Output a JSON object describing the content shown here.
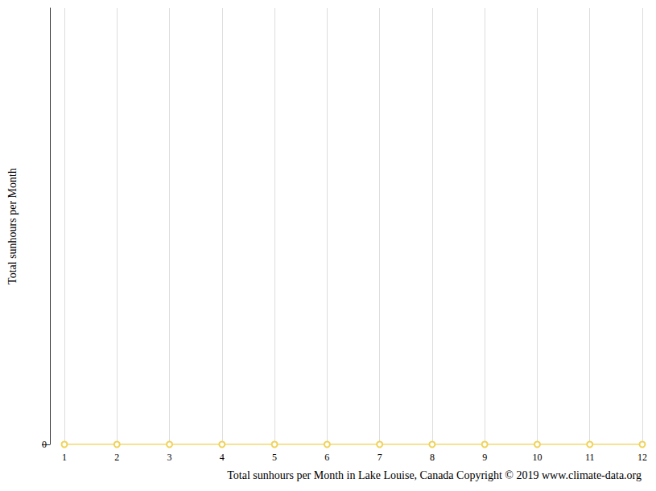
{
  "chart_data": {
    "type": "line",
    "xlabel": "Total sunhours per Month in Lake Louise, Canada Copyright © 2019 www.climate-data.org",
    "ylabel": "Total sunhours per Month",
    "categories": [
      "1",
      "2",
      "3",
      "4",
      "5",
      "6",
      "7",
      "8",
      "9",
      "10",
      "11",
      "12"
    ],
    "values": [
      0,
      0,
      0,
      0,
      0,
      0,
      0,
      0,
      0,
      0,
      0,
      0
    ],
    "color": "#f0d35a",
    "marker": "emptyCircle",
    "ylim": [
      0,
      1
    ],
    "yticks": [
      0
    ],
    "grid": true
  }
}
